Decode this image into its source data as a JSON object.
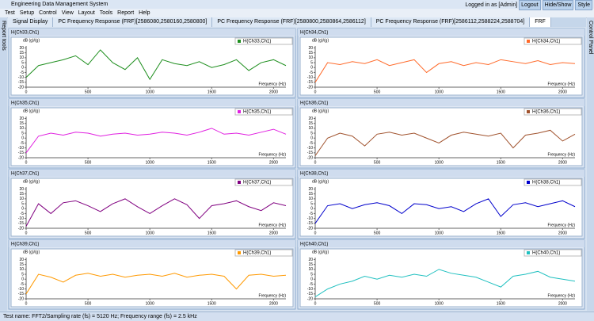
{
  "app": {
    "title": "Engineering Data Management System",
    "menu": [
      "Test",
      "Setup",
      "Control",
      "View",
      "Layout",
      "Tools",
      "Report",
      "Help"
    ],
    "user": "Logged in as [Admin]",
    "buttons": [
      "Logout",
      "Hide/Show",
      "Style"
    ],
    "tabs": [
      "Signal Display",
      "PC Frequency Response (FRF)[2586080,2580160,2580800]",
      "PC Frequency Response (FRF)[2580800,2580864,2586112]",
      "PC Frequency Response (FRF)[2586112,2588224,2588704]",
      "FRF"
    ],
    "left_tool": "Report tools",
    "right_tool": "Control Panel",
    "status": "Test name: FFT2/Sampling rate (fs) = 5120 Hz; Frequency range (fs) = 2.5 kHz"
  },
  "chart_data": [
    {
      "type": "line",
      "title": "H(Ch33,Ch1)",
      "ylabel": "dB (g)/(g)",
      "xlabel": "Frequency (Hz)",
      "xlim": [
        0,
        2100
      ],
      "ylim": [
        -20,
        22
      ],
      "xticks": [
        0,
        500,
        1000,
        1500,
        2000
      ],
      "yticks": [
        -20,
        -15,
        -10,
        -5,
        0,
        5,
        10,
        15,
        20
      ],
      "x": [
        0,
        100,
        200,
        300,
        400,
        500,
        600,
        700,
        800,
        900,
        1000,
        1100,
        1200,
        1300,
        1400,
        1500,
        1600,
        1700,
        1800,
        1900,
        2000,
        2100
      ],
      "series": [
        {
          "name": "H(Ch33,Ch1)",
          "color": "#1f8f1f",
          "values": [
            -10,
            2,
            5,
            8,
            12,
            3,
            18,
            5,
            -2,
            10,
            -12,
            8,
            4,
            2,
            6,
            0,
            3,
            8,
            -3,
            5,
            8,
            2
          ]
        }
      ]
    },
    {
      "type": "line",
      "title": "H(Ch34,Ch1)",
      "ylabel": "dB (g)/(g)",
      "xlabel": "Frequency (Hz)",
      "xlim": [
        0,
        2100
      ],
      "ylim": [
        -20,
        22
      ],
      "xticks": [
        0,
        500,
        1000,
        1500,
        2000
      ],
      "yticks": [
        -20,
        -15,
        -10,
        -5,
        0,
        5,
        10,
        15,
        20
      ],
      "x": [
        0,
        100,
        200,
        300,
        400,
        500,
        600,
        700,
        800,
        900,
        1000,
        1100,
        1200,
        1300,
        1400,
        1500,
        1600,
        1700,
        1800,
        1900,
        2000,
        2100
      ],
      "series": [
        {
          "name": "H(Ch34,Ch1)",
          "color": "#ff6a2a",
          "values": [
            -15,
            5,
            3,
            6,
            4,
            8,
            2,
            5,
            8,
            -5,
            4,
            6,
            2,
            5,
            3,
            8,
            6,
            4,
            7,
            3,
            5,
            4
          ]
        }
      ]
    },
    {
      "type": "line",
      "title": "H(Ch35,Ch1)",
      "ylabel": "dB (g)/(g)",
      "xlabel": "Frequency (Hz)",
      "xlim": [
        0,
        2100
      ],
      "ylim": [
        -20,
        22
      ],
      "xticks": [
        0,
        500,
        1000,
        1500,
        2000
      ],
      "yticks": [
        -20,
        -15,
        -10,
        -5,
        0,
        5,
        10,
        15,
        20
      ],
      "x": [
        0,
        100,
        200,
        300,
        400,
        500,
        600,
        700,
        800,
        900,
        1000,
        1100,
        1200,
        1300,
        1400,
        1500,
        1600,
        1700,
        1800,
        1900,
        2000,
        2100
      ],
      "series": [
        {
          "name": "H(Ch35,Ch1)",
          "color": "#e020e0",
          "values": [
            -15,
            2,
            5,
            3,
            6,
            5,
            2,
            4,
            5,
            3,
            4,
            6,
            5,
            3,
            6,
            10,
            4,
            5,
            3,
            6,
            9,
            4
          ]
        }
      ]
    },
    {
      "type": "line",
      "title": "H(Ch36,Ch1)",
      "ylabel": "dB (g)/(g)",
      "xlabel": "Frequency (Hz)",
      "xlim": [
        0,
        2100
      ],
      "ylim": [
        -20,
        22
      ],
      "xticks": [
        0,
        500,
        1000,
        1500,
        2000
      ],
      "yticks": [
        -20,
        -15,
        -10,
        -5,
        0,
        5,
        10,
        15,
        20
      ],
      "x": [
        0,
        100,
        200,
        300,
        400,
        500,
        600,
        700,
        800,
        900,
        1000,
        1100,
        1200,
        1300,
        1400,
        1500,
        1600,
        1700,
        1800,
        1900,
        2000,
        2100
      ],
      "series": [
        {
          "name": "H(Ch36,Ch1)",
          "color": "#a0522d",
          "values": [
            -18,
            0,
            5,
            2,
            -8,
            4,
            6,
            3,
            5,
            0,
            -5,
            3,
            6,
            4,
            2,
            5,
            -10,
            3,
            5,
            8,
            -3,
            4
          ]
        }
      ]
    },
    {
      "type": "line",
      "title": "H(Ch37,Ch1)",
      "ylabel": "dB (g)/(g)",
      "xlabel": "Frequency (Hz)",
      "xlim": [
        0,
        2100
      ],
      "ylim": [
        -20,
        22
      ],
      "xticks": [
        0,
        500,
        1000,
        1500,
        2000
      ],
      "yticks": [
        -20,
        -15,
        -10,
        -5,
        0,
        5,
        10,
        15,
        20
      ],
      "x": [
        0,
        100,
        200,
        300,
        400,
        500,
        600,
        700,
        800,
        900,
        1000,
        1100,
        1200,
        1300,
        1400,
        1500,
        1600,
        1700,
        1800,
        1900,
        2000,
        2100
      ],
      "series": [
        {
          "name": "H(Ch37,Ch1)",
          "color": "#800080",
          "values": [
            -18,
            5,
            -5,
            6,
            8,
            3,
            -3,
            5,
            10,
            2,
            -5,
            3,
            10,
            4,
            -10,
            3,
            5,
            8,
            2,
            -2,
            6,
            3
          ]
        }
      ]
    },
    {
      "type": "line",
      "title": "H(Ch38,Ch1)",
      "ylabel": "dB (g)/(g)",
      "xlabel": "Frequency (Hz)",
      "xlim": [
        0,
        2100
      ],
      "ylim": [
        -20,
        22
      ],
      "xticks": [
        0,
        500,
        1000,
        1500,
        2000
      ],
      "yticks": [
        -20,
        -15,
        -10,
        -5,
        0,
        5,
        10,
        15,
        20
      ],
      "x": [
        0,
        100,
        200,
        300,
        400,
        500,
        600,
        700,
        800,
        900,
        1000,
        1100,
        1200,
        1300,
        1400,
        1500,
        1600,
        1700,
        1800,
        1900,
        2000,
        2100
      ],
      "series": [
        {
          "name": "H(Ch38,Ch1)",
          "color": "#0000cc",
          "values": [
            -15,
            3,
            5,
            0,
            4,
            6,
            3,
            -5,
            5,
            4,
            0,
            2,
            -3,
            5,
            10,
            -8,
            4,
            6,
            2,
            5,
            8,
            2
          ]
        }
      ]
    },
    {
      "type": "line",
      "title": "H(Ch39,Ch1)",
      "ylabel": "dB (g)/(g)",
      "xlabel": "Frequency (Hz)",
      "xlim": [
        0,
        2100
      ],
      "ylim": [
        -20,
        22
      ],
      "xticks": [
        0,
        500,
        1000,
        1500,
        2000
      ],
      "yticks": [
        -20,
        -15,
        -10,
        -5,
        0,
        5,
        10,
        15,
        20
      ],
      "x": [
        0,
        100,
        200,
        300,
        400,
        500,
        600,
        700,
        800,
        900,
        1000,
        1100,
        1200,
        1300,
        1400,
        1500,
        1600,
        1700,
        1800,
        1900,
        2000,
        2100
      ],
      "series": [
        {
          "name": "H(Ch39,Ch1)",
          "color": "#ff9900",
          "values": [
            -15,
            5,
            2,
            -3,
            4,
            6,
            3,
            5,
            2,
            4,
            5,
            3,
            6,
            2,
            4,
            5,
            3,
            -10,
            4,
            5,
            3,
            4
          ]
        }
      ]
    },
    {
      "type": "line",
      "title": "H(Ch40,Ch1)",
      "ylabel": "dB (g)/(g)",
      "xlabel": "Frequency (Hz)",
      "xlim": [
        0,
        2100
      ],
      "ylim": [
        -20,
        22
      ],
      "xticks": [
        0,
        500,
        1000,
        1500,
        2000
      ],
      "yticks": [
        -20,
        -15,
        -10,
        -5,
        0,
        5,
        10,
        15,
        20
      ],
      "x": [
        0,
        100,
        200,
        300,
        400,
        500,
        600,
        700,
        800,
        900,
        1000,
        1100,
        1200,
        1300,
        1400,
        1500,
        1600,
        1700,
        1800,
        1900,
        2000,
        2100
      ],
      "series": [
        {
          "name": "H(Ch40,Ch1)",
          "color": "#20c0c0",
          "values": [
            -18,
            -10,
            -5,
            -2,
            3,
            0,
            4,
            2,
            5,
            3,
            10,
            6,
            4,
            2,
            -3,
            -8,
            3,
            5,
            8,
            2,
            0,
            -2
          ]
        }
      ]
    }
  ]
}
